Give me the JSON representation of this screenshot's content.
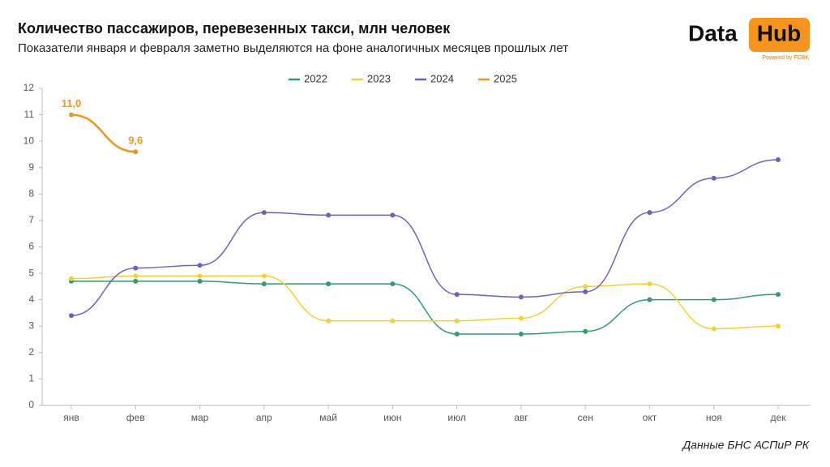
{
  "chart_data": {
    "type": "line",
    "title": "Количество пассажиров, перевезенных такси, млн человек",
    "subtitle": "Показатели января и февраля заметно выделяются на фоне аналогичных месяцев прошлых лет",
    "source": "Данные БНС АСПиР РК",
    "logo": {
      "left": "Data",
      "right": "Hub",
      "tagline": "Powered by FCBK"
    },
    "categories": [
      "янв",
      "фев",
      "мар",
      "апр",
      "май",
      "июн",
      "июл",
      "авг",
      "сен",
      "окт",
      "ноя",
      "дек"
    ],
    "series": [
      {
        "name": "2022",
        "color": "#2e9e6e",
        "values": [
          4.7,
          4.7,
          4.7,
          4.6,
          4.6,
          4.6,
          2.7,
          2.7,
          2.8,
          4.0,
          4.0,
          4.2
        ]
      },
      {
        "name": "2023",
        "color": "#f2d231",
        "values": [
          4.8,
          4.9,
          4.9,
          4.9,
          3.2,
          3.2,
          3.2,
          3.3,
          4.5,
          4.6,
          2.9,
          3.0
        ]
      },
      {
        "name": "2024",
        "color": "#6f5fc4",
        "values": [
          3.4,
          5.2,
          5.3,
          7.3,
          7.2,
          7.2,
          4.2,
          4.1,
          4.3,
          7.3,
          8.6,
          9.3
        ]
      },
      {
        "name": "2025",
        "color": "#f0961e",
        "values": [
          11.0,
          9.6,
          null,
          null,
          null,
          null,
          null,
          null,
          null,
          null,
          null,
          null
        ],
        "value_labels": [
          "11,0",
          "9,6",
          null,
          null,
          null,
          null,
          null,
          null,
          null,
          null,
          null,
          null
        ]
      }
    ],
    "ylim": [
      0,
      12
    ],
    "yticks": [
      0,
      1,
      2,
      3,
      4,
      5,
      6,
      7,
      8,
      9,
      10,
      11,
      12
    ],
    "grid": false,
    "legend": "top"
  }
}
